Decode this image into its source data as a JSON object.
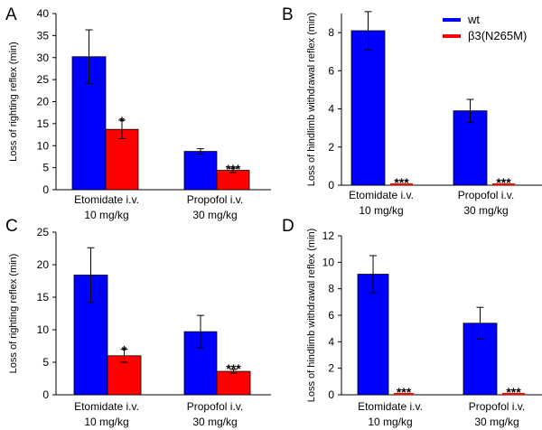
{
  "figure_title": "",
  "colors": {
    "wt": "#0000ff",
    "mutant": "#ff0000",
    "axis": "#000000"
  },
  "chart_data": [
    {
      "panel": "A",
      "type": "bar",
      "ylabel": "Loss of righting reflex (min)",
      "ylim": [
        0,
        40
      ],
      "yticks": [
        0,
        5,
        10,
        15,
        20,
        25,
        30,
        35,
        40
      ],
      "categories": [
        {
          "line1": "Etomidate i.v.",
          "line2": "10 mg/kg"
        },
        {
          "line1": "Propofol i.v.",
          "line2": "30 mg/kg"
        }
      ],
      "series": [
        {
          "name": "wt",
          "values": [
            30.2,
            8.7
          ],
          "errors": [
            6.1,
            0.6
          ]
        },
        {
          "name": "β3(N265M)",
          "values": [
            13.7,
            4.4
          ],
          "errors": [
            2.1,
            0.5
          ]
        }
      ],
      "annotations": [
        "*",
        "***"
      ],
      "legend": false
    },
    {
      "panel": "B",
      "type": "bar",
      "ylabel": "Loss of hindlimb withdrawal reflex (min)",
      "ylim": [
        0,
        9
      ],
      "yticks": [
        0,
        2,
        4,
        6,
        8
      ],
      "categories": [
        {
          "line1": "Etomidate i.v.",
          "line2": "10 mg/kg"
        },
        {
          "line1": "Propofol i.v.",
          "line2": "30 mg/kg"
        }
      ],
      "series": [
        {
          "name": "wt",
          "values": [
            8.1,
            3.9
          ],
          "errors": [
            1.0,
            0.6
          ]
        },
        {
          "name": "β3(N265M)",
          "values": [
            0,
            0
          ],
          "errors": [
            0,
            0
          ]
        }
      ],
      "annotations": [
        "***",
        "***"
      ],
      "legend": true
    },
    {
      "panel": "C",
      "type": "bar",
      "ylabel": "Loss of righting reflex (min)",
      "ylim": [
        0,
        25
      ],
      "yticks": [
        0,
        5,
        10,
        15,
        20,
        25
      ],
      "categories": [
        {
          "line1": "Etomidate i.v.",
          "line2": "10 mg/kg"
        },
        {
          "line1": "Propofol i.v.",
          "line2": "30 mg/kg"
        }
      ],
      "series": [
        {
          "name": "wt",
          "values": [
            18.4,
            9.7
          ],
          "errors": [
            4.2,
            2.5
          ]
        },
        {
          "name": "β3(N265M)",
          "values": [
            6.0,
            3.6
          ],
          "errors": [
            1.0,
            0.3
          ]
        }
      ],
      "annotations": [
        "*",
        "***"
      ],
      "legend": false
    },
    {
      "panel": "D",
      "type": "bar",
      "ylabel": "Loss of hindlimb withdrawal reflex (min)",
      "ylim": [
        0,
        12
      ],
      "yticks": [
        0,
        2,
        4,
        6,
        8,
        10,
        12
      ],
      "categories": [
        {
          "line1": "Etomidate i.v.",
          "line2": "10 mg/kg"
        },
        {
          "line1": "Propofol i.v.",
          "line2": "30 mg/kg"
        }
      ],
      "series": [
        {
          "name": "wt",
          "values": [
            9.1,
            5.4
          ],
          "errors": [
            1.4,
            1.2
          ]
        },
        {
          "name": "β3(N265M)",
          "values": [
            0,
            0
          ],
          "errors": [
            0,
            0
          ]
        }
      ],
      "annotations": [
        "***",
        "***"
      ],
      "legend": false
    }
  ],
  "legend": {
    "items": [
      {
        "label": "wt"
      },
      {
        "label": "β3(N265M)"
      }
    ]
  }
}
